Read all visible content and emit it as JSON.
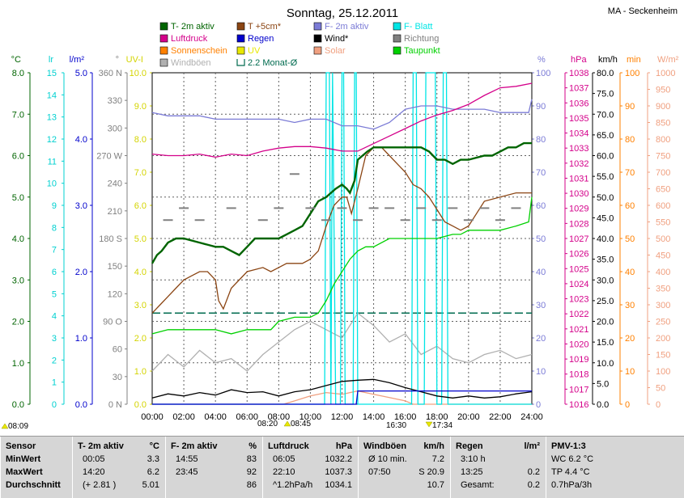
{
  "header": {
    "title": "Sonntag, 25.12.2011",
    "station": "MA - Seckenheim"
  },
  "legend": [
    {
      "label": "T- 2m aktiv",
      "color": "#006400",
      "type": "box"
    },
    {
      "label": "T +5cm*",
      "color": "#8b4513",
      "type": "box"
    },
    {
      "label": "F- 2m aktiv",
      "color": "#7b7bd6",
      "type": "box"
    },
    {
      "label": "F- Blatt",
      "color": "#00e5e5",
      "type": "box"
    },
    {
      "label": "Luftdruck",
      "color": "#d4008a",
      "type": "box"
    },
    {
      "label": "Regen",
      "color": "#0000cc",
      "type": "box"
    },
    {
      "label": "Wind*",
      "color": "#000000",
      "type": "box"
    },
    {
      "label": "Richtung",
      "color": "#808080",
      "type": "box"
    },
    {
      "label": "Sonnenschein",
      "color": "#ff8000",
      "type": "box"
    },
    {
      "label": "UV",
      "color": "#e8e800",
      "type": "box"
    },
    {
      "label": "Solar",
      "color": "#f0a080",
      "type": "box"
    },
    {
      "label": "Taupunkt",
      "color": "#00d000",
      "type": "box"
    },
    {
      "label": "Windböen",
      "color": "#b0b0b0",
      "type": "box"
    },
    {
      "label": "2.2 Monat-Ø",
      "color": "#006b4f",
      "type": "bracket"
    }
  ],
  "axes": {
    "left": [
      {
        "unit": "°C",
        "color": "#006400",
        "ticks": [
          "8.0",
          "7.0",
          "6.0",
          "5.0",
          "4.0",
          "3.0",
          "2.0",
          "1.0",
          "0.0"
        ],
        "range": [
          0,
          8
        ]
      },
      {
        "unit": "lr",
        "color": "#00d0d0",
        "ticks": [
          "15",
          "14",
          "13",
          "12",
          "11",
          "10",
          "9",
          "8",
          "7",
          "6",
          "5",
          "4",
          "3",
          "2",
          "1",
          "0"
        ],
        "range": [
          0,
          15
        ]
      },
      {
        "unit": "l/m²",
        "color": "#0000cc",
        "ticks": [
          "5.0",
          "4.0",
          "3.0",
          "2.0",
          "1.0",
          "0.0"
        ],
        "range": [
          0,
          5
        ]
      },
      {
        "unit": "°",
        "color": "#808080",
        "ticks": [
          "360 N",
          "330",
          "300",
          "270 W",
          "240",
          "210",
          "180 S",
          "150",
          "120",
          "90 O",
          "60",
          "30",
          "0 N"
        ],
        "range": [
          0,
          360
        ]
      },
      {
        "unit": "UV-I",
        "color": "#d4d400",
        "ticks": [
          "10.0",
          "9.0",
          "8.0",
          "7.0",
          "6.0",
          "5.0",
          "4.0",
          "3.0",
          "2.0",
          "1.0",
          "0.0"
        ],
        "range": [
          0,
          10
        ]
      }
    ],
    "right": [
      {
        "unit": "%",
        "color": "#7b7bd6",
        "ticks": [
          "100",
          "90",
          "80",
          "70",
          "60",
          "50",
          "40",
          "30",
          "20",
          "10",
          "0"
        ],
        "range": [
          0,
          100
        ]
      },
      {
        "unit": "hPa",
        "color": "#d4008a",
        "ticks": [
          "1038",
          "1037",
          "1036",
          "1035",
          "1034",
          "1033",
          "1032",
          "1031",
          "1030",
          "1029",
          "1028",
          "1027",
          "1026",
          "1025",
          "1024",
          "1023",
          "1022",
          "1021",
          "1020",
          "1019",
          "1018",
          "1017",
          "1016"
        ],
        "range": [
          1016,
          1038
        ]
      },
      {
        "unit": "km/h",
        "color": "#000000",
        "ticks": [
          "80.0",
          "75.0",
          "70.0",
          "65.0",
          "60.0",
          "55.0",
          "50.0",
          "45.0",
          "40.0",
          "35.0",
          "30.0",
          "25.0",
          "20.0",
          "15.0",
          "10.0",
          "5.0",
          "0.0"
        ],
        "range": [
          0,
          80
        ]
      },
      {
        "unit": "min",
        "color": "#ff8000",
        "ticks": [
          "100",
          "90",
          "80",
          "70",
          "60",
          "50",
          "40",
          "30",
          "20",
          "10",
          "0"
        ],
        "range": [
          0,
          100
        ]
      },
      {
        "unit": "W/m²",
        "color": "#f0a080",
        "ticks": [
          "1000",
          "950",
          "900",
          "850",
          "800",
          "750",
          "700",
          "650",
          "600",
          "550",
          "500",
          "450",
          "400",
          "350",
          "300",
          "250",
          "200",
          "150",
          "100",
          "50",
          "0"
        ],
        "range": [
          0,
          1000
        ]
      }
    ],
    "x_ticks": [
      "00:00",
      "02:00",
      "04:00",
      "06:00",
      "08:00",
      "10:00",
      "12:00",
      "14:00",
      "16:00",
      "18:00",
      "20:00",
      "22:00",
      "24:00"
    ],
    "x_range": [
      0,
      24
    ]
  },
  "sun_times": {
    "sunrise_left": "08:09",
    "sunrise": "08:20",
    "sunrise_mark": "08:45",
    "sunset_mark": "16:30",
    "sunset": "17:34"
  },
  "chart_data": {
    "type": "line",
    "x_unit": "hour of day",
    "xlim": [
      0,
      24
    ],
    "grid": true,
    "legend_position": "top",
    "series": [
      {
        "name": "T- 2m aktiv",
        "unit": "°C",
        "color": "#006400",
        "x": [
          0,
          0.3,
          0.6,
          1,
          1.5,
          2,
          3,
          4,
          4.5,
          5,
          5.5,
          6,
          6.5,
          7,
          7.5,
          8,
          8.5,
          9,
          9.5,
          10,
          10.5,
          11,
          11.3,
          11.6,
          12,
          12.3,
          12.5,
          12.8,
          13,
          13.3,
          13.6,
          14,
          14.3,
          15,
          16,
          16.5,
          17,
          17.5,
          18,
          18.5,
          19,
          19.5,
          20,
          21,
          21.5,
          22,
          22.5,
          23,
          23.5,
          24
        ],
        "y": [
          3.4,
          3.6,
          3.7,
          3.9,
          4.0,
          4.0,
          3.9,
          3.8,
          3.8,
          3.7,
          3.6,
          3.8,
          4.0,
          4.0,
          4.0,
          4.0,
          4.1,
          4.2,
          4.3,
          4.6,
          4.9,
          5.0,
          5.1,
          5.2,
          5.3,
          5.2,
          5.1,
          5.4,
          5.9,
          6.0,
          6.1,
          6.2,
          6.2,
          6.2,
          6.2,
          6.2,
          6.2,
          6.1,
          5.9,
          5.9,
          5.8,
          5.9,
          5.9,
          6.0,
          6.0,
          6.1,
          6.2,
          6.2,
          6.3,
          6.3
        ]
      },
      {
        "name": "T +5cm*",
        "unit": "°C",
        "color": "#8b4513",
        "x": [
          0,
          0.5,
          1,
          1.5,
          2,
          2.5,
          3,
          3.5,
          4,
          4.2,
          4.5,
          5,
          6,
          7,
          7.5,
          8,
          8.5,
          9,
          9.5,
          10,
          10.5,
          11,
          11.5,
          12,
          12.3,
          12.6,
          13,
          13.5,
          14,
          14.5,
          15,
          15.5,
          16,
          16.5,
          17,
          17.5,
          18,
          18.5,
          19,
          19.5,
          20,
          20.5,
          21,
          22,
          23,
          24
        ],
        "y": [
          2.2,
          2.4,
          2.6,
          2.8,
          3.0,
          3.1,
          3.2,
          3.2,
          3.0,
          2.5,
          2.3,
          2.8,
          3.2,
          3.3,
          3.2,
          3.3,
          3.4,
          3.4,
          3.4,
          3.5,
          3.7,
          4.3,
          4.8,
          5.0,
          5.0,
          4.6,
          5.2,
          6.0,
          6.2,
          6.2,
          6.0,
          5.8,
          5.6,
          5.3,
          5.2,
          5.0,
          4.7,
          4.4,
          4.3,
          4.2,
          4.3,
          4.6,
          4.9,
          5.0,
          5.1,
          5.1
        ]
      },
      {
        "name": "Taupunkt",
        "unit": "°C",
        "color": "#00d000",
        "x": [
          0,
          1,
          2,
          3,
          4,
          5,
          6,
          7,
          7.5,
          8,
          9,
          10,
          10.5,
          11,
          11.5,
          12,
          12.5,
          13,
          13.5,
          14,
          15,
          16,
          17,
          18,
          19,
          19.5,
          20,
          21,
          22,
          23,
          23.8,
          24
        ],
        "y": [
          1.7,
          1.8,
          1.8,
          1.8,
          1.8,
          1.7,
          1.8,
          1.8,
          1.8,
          2.0,
          2.1,
          2.1,
          2.2,
          2.5,
          2.9,
          3.2,
          3.5,
          3.7,
          3.8,
          3.8,
          4.0,
          4.0,
          4.0,
          4.0,
          4.1,
          4.1,
          4.2,
          4.2,
          4.2,
          4.3,
          4.4,
          5.0
        ]
      },
      {
        "name": "F- 2m aktiv",
        "unit": "%",
        "color": "#7b7bd6",
        "x": [
          0,
          1,
          2,
          3,
          4,
          5,
          6,
          7,
          8,
          9,
          10,
          11,
          12,
          13,
          14,
          15,
          16,
          17,
          18,
          19,
          20,
          21,
          22,
          23,
          23.8,
          24
        ],
        "y": [
          88,
          87,
          87,
          87,
          86,
          86,
          86,
          86,
          86,
          85,
          86,
          86,
          84,
          84,
          83,
          85,
          89,
          90,
          90,
          89,
          89,
          89,
          88,
          88,
          88,
          92
        ]
      },
      {
        "name": "Luftdruck",
        "unit": "hPa",
        "color": "#d4008a",
        "x": [
          0,
          1,
          2,
          3,
          4,
          5,
          6,
          7,
          8,
          9,
          10,
          11,
          12,
          13,
          14,
          15,
          16,
          17,
          18,
          19,
          20,
          21,
          22,
          23,
          24
        ],
        "y": [
          1032.6,
          1032.5,
          1032.5,
          1032.6,
          1032.4,
          1032.6,
          1032.5,
          1032.8,
          1033.0,
          1033.1,
          1033.1,
          1033.0,
          1032.8,
          1032.8,
          1033.3,
          1033.8,
          1034.3,
          1034.8,
          1035.2,
          1035.5,
          1035.9,
          1036.5,
          1037.0,
          1037.1,
          1037.3
        ]
      },
      {
        "name": "F- Blatt",
        "unit": "lr",
        "color": "#00e5e5",
        "x": [
          0,
          10.9,
          11.0,
          11.2,
          11.3,
          11.4,
          11.6,
          11.9,
          12.0,
          12.1,
          12.2,
          12.7,
          12.8,
          12.9,
          13.0,
          16.4,
          16.5,
          16.7,
          16.8,
          17.2,
          17.3,
          17.9,
          18.0,
          18.3,
          18.4,
          18.6,
          18.7,
          24
        ],
        "y": [
          0,
          0,
          15,
          15,
          0,
          15,
          0,
          0,
          15,
          15,
          0,
          0,
          15,
          15,
          0,
          0,
          15,
          15,
          0,
          0,
          15,
          15,
          0,
          0,
          15,
          15,
          0,
          0
        ]
      },
      {
        "name": "Wind*",
        "unit": "km/h",
        "color": "#000000",
        "x": [
          0,
          1,
          2,
          3,
          4,
          5,
          6,
          7,
          8,
          9,
          10,
          11,
          12,
          13,
          14,
          15,
          16,
          17,
          18,
          19,
          20,
          21,
          22,
          23,
          24
        ],
        "y": [
          1.5,
          2.5,
          2.0,
          2.8,
          2.2,
          3.5,
          2.8,
          3.0,
          2.0,
          3.0,
          3.5,
          4.5,
          5.5,
          5.8,
          6.0,
          5.2,
          4.0,
          3.0,
          2.0,
          1.5,
          2.0,
          1.5,
          1.8,
          2.5,
          3.0
        ]
      },
      {
        "name": "Windböen",
        "unit": "km/h",
        "color": "#b0b0b0",
        "x": [
          0,
          1,
          2,
          3,
          4,
          5,
          6,
          7,
          8,
          9,
          10,
          11,
          12,
          13,
          14,
          15,
          16,
          17,
          18,
          19,
          20,
          21,
          22,
          23,
          24
        ],
        "y": [
          8,
          12,
          9,
          13,
          10,
          11,
          8,
          12,
          15,
          18,
          20,
          18,
          16,
          22,
          19,
          15,
          17,
          12,
          14,
          11,
          10,
          12,
          13,
          11,
          12
        ]
      },
      {
        "name": "Richtung",
        "unit": "°",
        "color": "#808080",
        "x": [
          1,
          2,
          3,
          5,
          7,
          8,
          9,
          10,
          11,
          12,
          13,
          14,
          15,
          16,
          17,
          18,
          19,
          20,
          21,
          22,
          23
        ],
        "y": [
          200,
          213,
          200,
          213,
          200,
          213,
          250,
          213,
          200,
          213,
          200,
          213,
          213,
          200,
          213,
          200,
          213,
          200,
          213,
          200,
          213
        ]
      },
      {
        "name": "Regen",
        "unit": "l/m²",
        "color": "#0000cc",
        "x": [
          0,
          12.9,
          13.0,
          16.5,
          24
        ],
        "y": [
          0.0,
          0.0,
          0.2,
          0.2,
          0.2
        ]
      },
      {
        "name": "Solar",
        "unit": "W/m²",
        "color": "#f0a080",
        "x": [
          0,
          8.3,
          9,
          10,
          11,
          12,
          13,
          14,
          15,
          16,
          16.5,
          24
        ],
        "y": [
          0,
          0,
          10,
          25,
          35,
          30,
          40,
          30,
          20,
          10,
          0,
          0
        ]
      }
    ],
    "reference_lines": [
      {
        "name": "2.2 Monat-Ø",
        "unit": "°C",
        "value": 2.2
      }
    ]
  },
  "stats": {
    "columns": [
      {
        "header": "Sensor",
        "unit": "",
        "rows": [
          "MinWert",
          "MaxWert",
          "Durchschnitt"
        ]
      },
      {
        "header": "T- 2m aktiv",
        "unit": "°C",
        "rows": [
          [
            "00:05",
            "3.3"
          ],
          [
            "14:20",
            "6.2"
          ],
          [
            "(+ 2.81 )",
            "5.01"
          ]
        ]
      },
      {
        "header": "F- 2m aktiv",
        "unit": "%",
        "rows": [
          [
            "14:55",
            "83"
          ],
          [
            "23:45",
            "92"
          ],
          [
            "",
            "86"
          ]
        ]
      },
      {
        "header": "Luftdruck",
        "unit": "hPa",
        "rows": [
          [
            "06:05",
            "1032.2"
          ],
          [
            "22:10",
            "1037.3"
          ],
          [
            "^1.2hPa/h",
            "1034.1"
          ]
        ]
      },
      {
        "header": "Windböen",
        "unit": "km/h",
        "rows": [
          [
            "Ø 10 min.",
            "7.2"
          ],
          [
            "07:50",
            "S 20.9"
          ],
          [
            "",
            "10.7"
          ]
        ]
      },
      {
        "header": "Regen",
        "unit": "l/m²",
        "rows": [
          [
            "3:10 h",
            ""
          ],
          [
            "13:25",
            "0.2"
          ],
          [
            "Gesamt:",
            "0.2"
          ]
        ]
      },
      {
        "header": "PMV-1:3",
        "unit": "",
        "rows": [
          "WC 6.2 °C",
          "TP 4.4 °C",
          "0.7hPa/3h"
        ]
      }
    ]
  }
}
